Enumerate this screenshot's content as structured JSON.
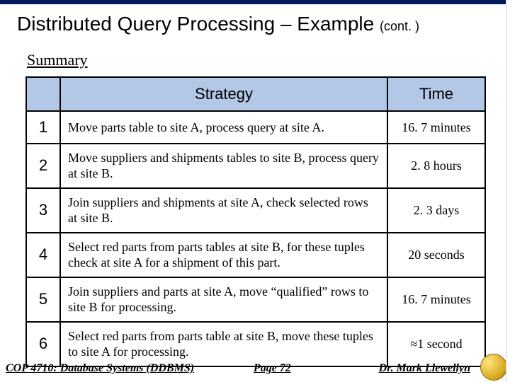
{
  "title_main": "Distributed Query Processing – Example ",
  "title_cont": "(cont. )",
  "subtitle": "Summary",
  "table": {
    "headers": {
      "num": "",
      "strategy": "Strategy",
      "time": "Time"
    },
    "rows": [
      {
        "num": "1",
        "strategy": "Move parts table to site A, process query at site A.",
        "time": "16. 7 minutes"
      },
      {
        "num": "2",
        "strategy": "Move suppliers and shipments tables to site B, process query at site B.",
        "time": "2. 8  hours"
      },
      {
        "num": "3",
        "strategy": "Join suppliers and shipments at site A, check selected rows at site B.",
        "time": "2. 3 days"
      },
      {
        "num": "4",
        "strategy": "Select red parts from parts tables at site B, for these tuples check at site A for a shipment of this part.",
        "time": "20 seconds"
      },
      {
        "num": "5",
        "strategy": "Join suppliers and parts at site A, move “qualified” rows to site B for processing.",
        "time": "16. 7 minutes"
      },
      {
        "num": "6",
        "strategy": "Select red parts from parts table at site B, move these tuples to site A for processing.",
        "time": "≈1 second"
      }
    ]
  },
  "footer": {
    "left": "COP 4710: Database Systems  (DDBMS)",
    "mid": "Page 72",
    "right": "Dr. Mark Llewellyn"
  }
}
